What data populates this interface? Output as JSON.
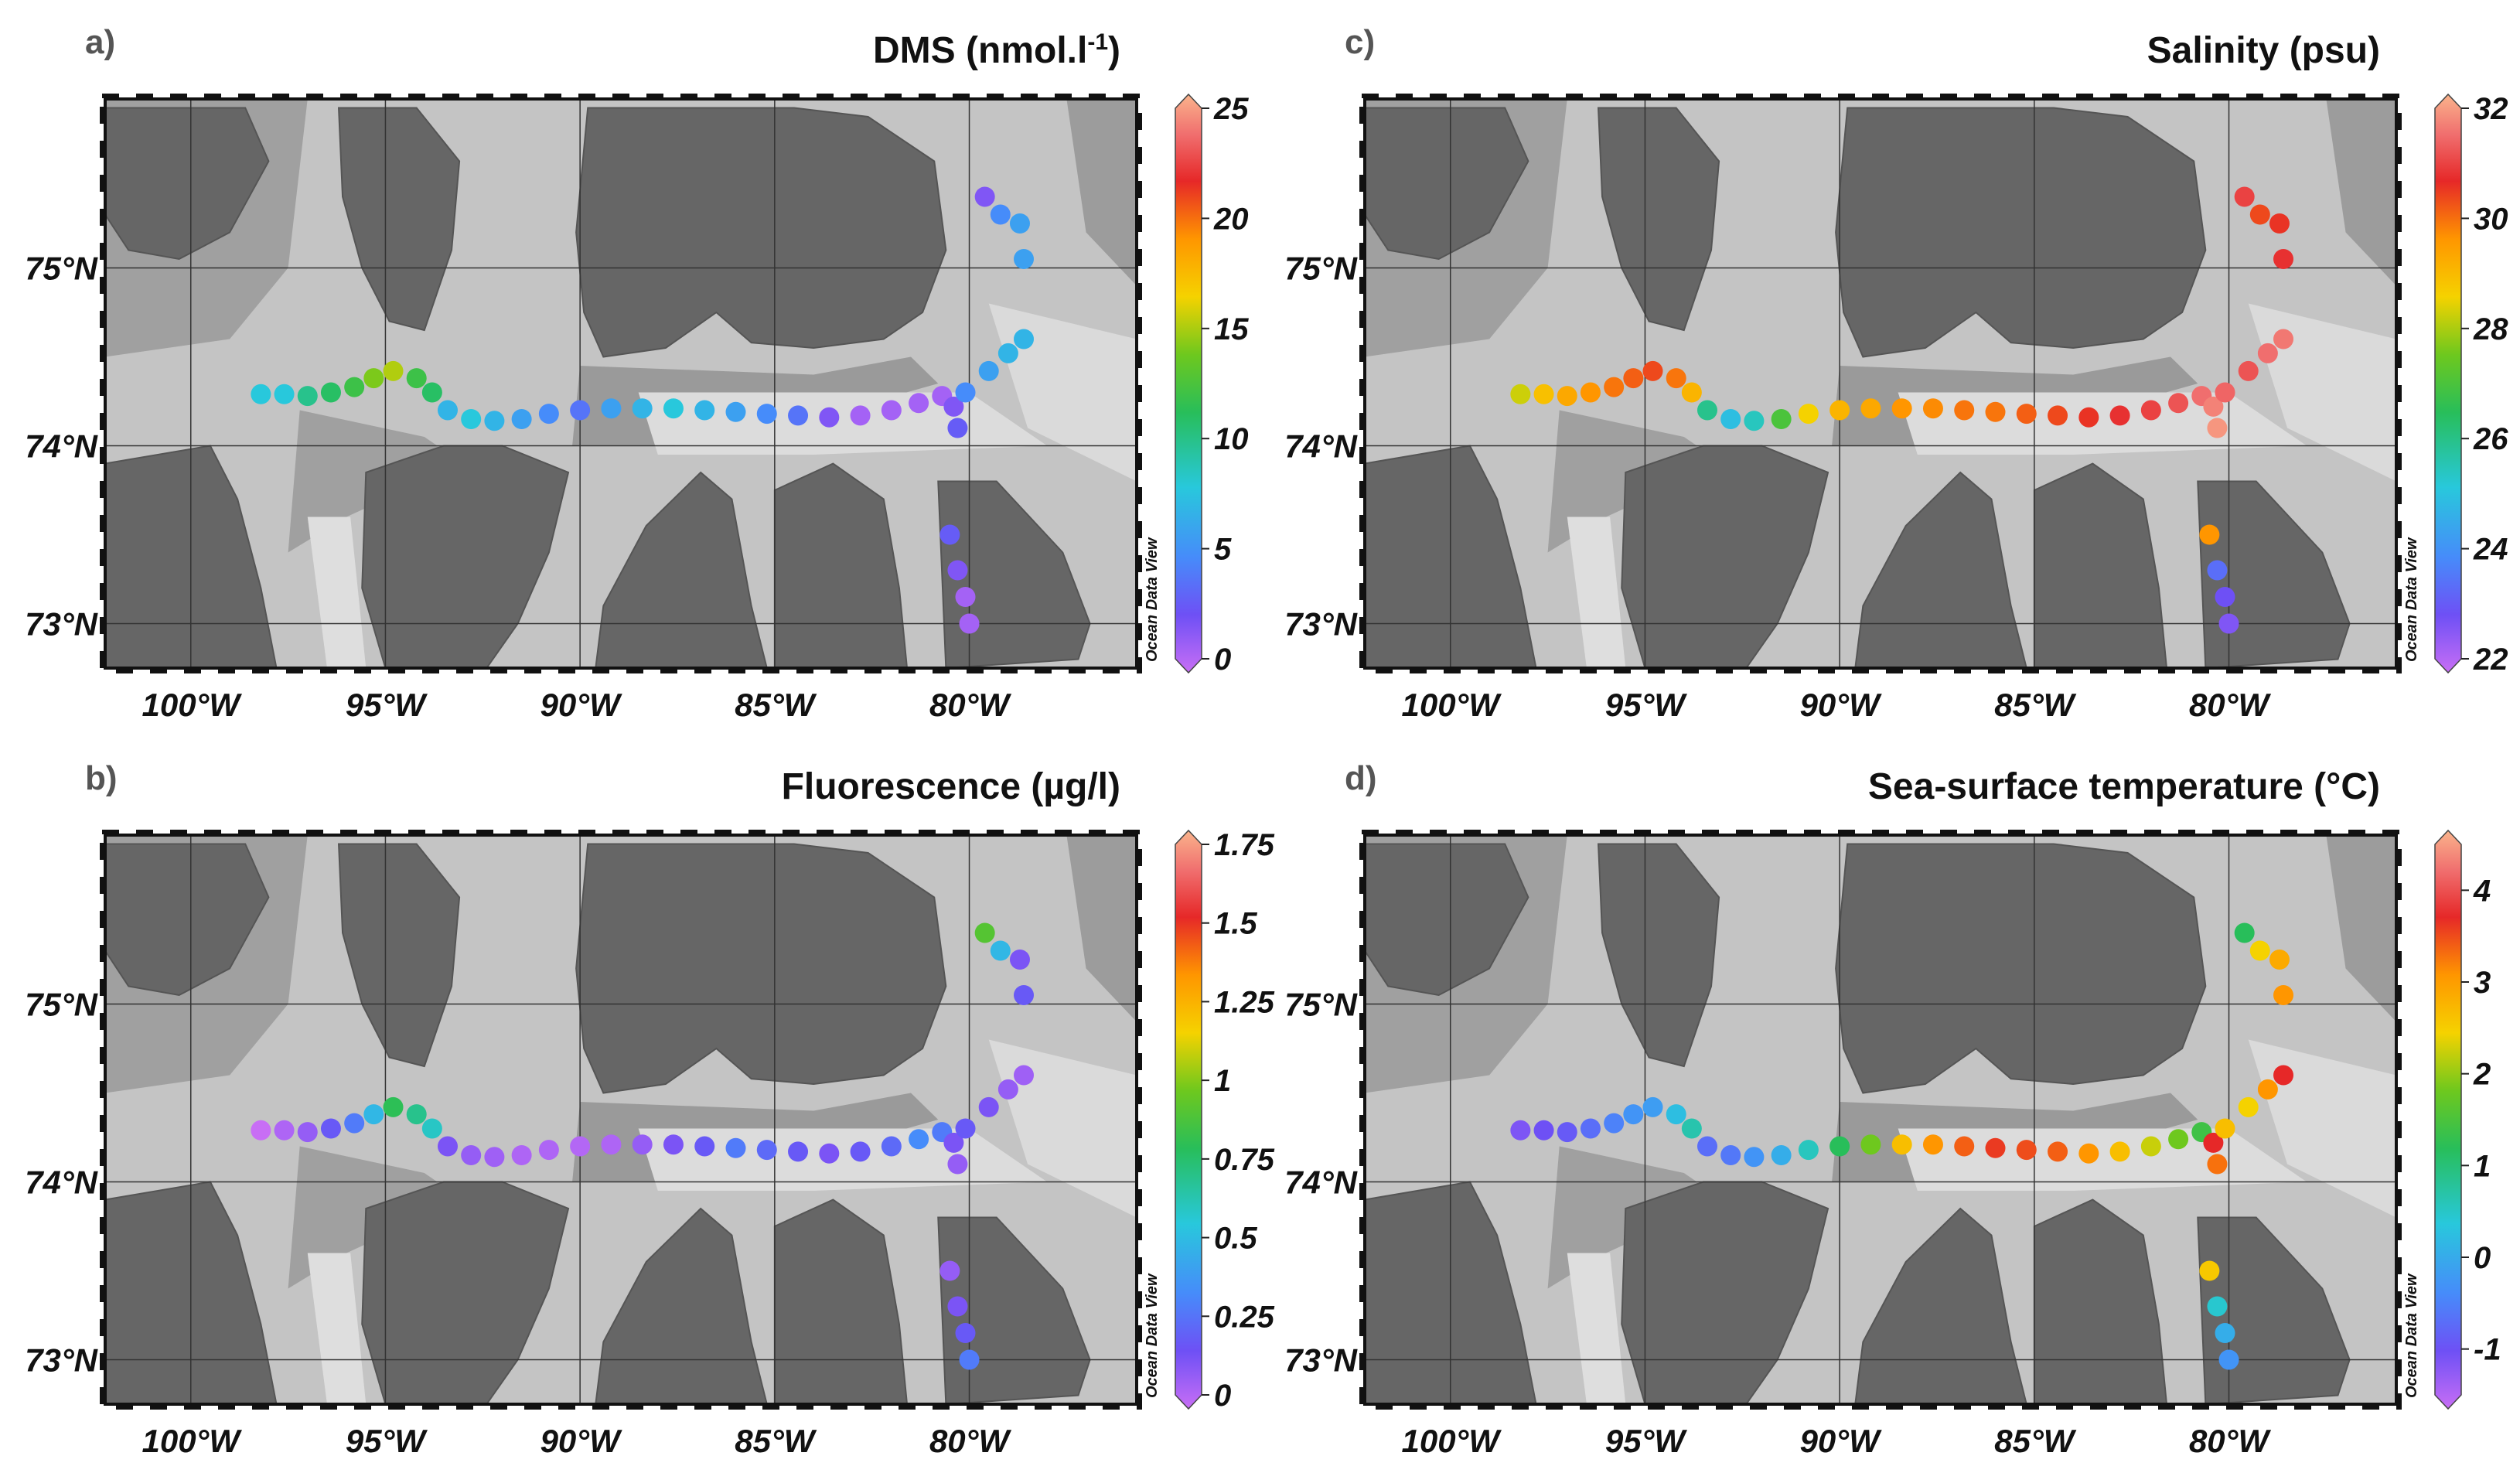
{
  "panels": [
    {
      "id": "a",
      "letter": "a)",
      "title": "DMS (nmol.l",
      "title_sup": "-1",
      "title_end": ")",
      "colorbar": {
        "min": 0,
        "max": 25,
        "ticks": [
          "25",
          "20",
          "15",
          "10",
          "5",
          "0"
        ]
      }
    },
    {
      "id": "c",
      "letter": "c)",
      "title": "Salinity (psu)",
      "title_sup": "",
      "title_end": "",
      "colorbar": {
        "min": 22,
        "max": 32,
        "ticks": [
          "32",
          "30",
          "28",
          "26",
          "24",
          "22"
        ]
      }
    },
    {
      "id": "b",
      "letter": "b)",
      "title": "Fluorescence (µg/l)",
      "title_sup": "",
      "title_end": "",
      "colorbar": {
        "min": 0,
        "max": 1.75,
        "ticks": [
          "1.75",
          "1.5",
          "1.25",
          "1",
          "0.75",
          "0.5",
          "0.25",
          "0"
        ]
      }
    },
    {
      "id": "d",
      "letter": "d)",
      "title": "Sea-surface temperature (°C)",
      "title_sup": "",
      "title_end": "",
      "colorbar": {
        "min": -1.5,
        "max": 4.5,
        "ticks": [
          "4",
          "3",
          "2",
          "1",
          "0",
          "-1"
        ]
      }
    }
  ],
  "map": {
    "lat_labels": [
      "75°N",
      "74°N",
      "73°N"
    ],
    "lon_labels": [
      "100°W",
      "95°W",
      "90°W",
      "85°W",
      "80°W"
    ],
    "watermark": "Ocean Data View"
  },
  "colors": {
    "land": "#666666",
    "water_deep": "#8a8a8a",
    "water_shallow": "#d9d9d9"
  },
  "track": [
    [
      -98.2,
      74.29
    ],
    [
      -97.6,
      74.29
    ],
    [
      -97.0,
      74.28
    ],
    [
      -96.4,
      74.3
    ],
    [
      -95.8,
      74.33
    ],
    [
      -95.3,
      74.38
    ],
    [
      -94.8,
      74.42
    ],
    [
      -94.2,
      74.38
    ],
    [
      -93.8,
      74.3
    ],
    [
      -93.4,
      74.2
    ],
    [
      -92.8,
      74.15
    ],
    [
      -92.2,
      74.14
    ],
    [
      -91.5,
      74.15
    ],
    [
      -90.8,
      74.18
    ],
    [
      -90.0,
      74.2
    ],
    [
      -89.2,
      74.21
    ],
    [
      -88.4,
      74.21
    ],
    [
      -87.6,
      74.21
    ],
    [
      -86.8,
      74.2
    ],
    [
      -86.0,
      74.19
    ],
    [
      -85.2,
      74.18
    ],
    [
      -84.4,
      74.17
    ],
    [
      -83.6,
      74.16
    ],
    [
      -82.8,
      74.17
    ],
    [
      -82.0,
      74.2
    ],
    [
      -81.3,
      74.24
    ],
    [
      -80.7,
      74.28
    ],
    [
      -80.4,
      74.22
    ],
    [
      -80.3,
      74.1
    ],
    [
      -80.1,
      74.3
    ],
    [
      -79.5,
      74.42
    ],
    [
      -79.0,
      74.52
    ],
    [
      -78.6,
      74.6
    ],
    [
      -78.6,
      75.05
    ],
    [
      -78.7,
      75.25
    ],
    [
      -79.2,
      75.3
    ],
    [
      -79.6,
      75.4
    ],
    [
      -80.5,
      73.5
    ],
    [
      -80.3,
      73.3
    ],
    [
      -80.1,
      73.15
    ],
    [
      -80.0,
      73.0
    ]
  ],
  "series": {
    "a": [
      8,
      8,
      10,
      11,
      12,
      14,
      15,
      12,
      11,
      7,
      8,
      7,
      6,
      5,
      4,
      6,
      7,
      8,
      7,
      6,
      5,
      4,
      2,
      1,
      1,
      1,
      1,
      2,
      3,
      5,
      6,
      7,
      7,
      6,
      6,
      5,
      2,
      3,
      2,
      1,
      1
    ],
    "c": [
      28.2,
      28.8,
      29.2,
      29.5,
      29.8,
      30.0,
      30.2,
      29.8,
      29.0,
      26.0,
      25.0,
      25.5,
      27.0,
      28.5,
      29.0,
      29.2,
      29.5,
      29.6,
      29.8,
      29.8,
      30.0,
      30.2,
      30.4,
      30.6,
      30.8,
      31.0,
      31.3,
      31.5,
      31.7,
      31.2,
      31.0,
      31.3,
      31.4,
      30.6,
      30.4,
      30.2,
      30.8,
      29.5,
      23.5,
      23.0,
      22.8
    ],
    "b": [
      0.0,
      0.05,
      0.1,
      0.2,
      0.3,
      0.5,
      0.8,
      0.7,
      0.6,
      0.15,
      0.1,
      0.08,
      0.05,
      0.05,
      0.04,
      0.05,
      0.1,
      0.15,
      0.2,
      0.3,
      0.25,
      0.2,
      0.15,
      0.2,
      0.25,
      0.35,
      0.3,
      0.15,
      0.1,
      0.2,
      0.15,
      0.1,
      0.08,
      0.2,
      0.15,
      0.5,
      0.9,
      0.1,
      0.15,
      0.2,
      0.3
    ],
    "d": [
      -1.0,
      -0.9,
      -0.8,
      -0.6,
      -0.4,
      -0.2,
      -0.1,
      0.3,
      0.7,
      -0.6,
      -0.5,
      -0.2,
      0.1,
      0.6,
      1.2,
      1.8,
      2.6,
      3.0,
      3.3,
      3.5,
      3.4,
      3.3,
      3.0,
      2.6,
      2.2,
      1.8,
      1.4,
      3.6,
      3.2,
      2.6,
      2.4,
      3.0,
      3.6,
      3.0,
      2.8,
      2.4,
      1.2,
      2.5,
      0.5,
      0.1,
      -0.2
    ]
  }
}
